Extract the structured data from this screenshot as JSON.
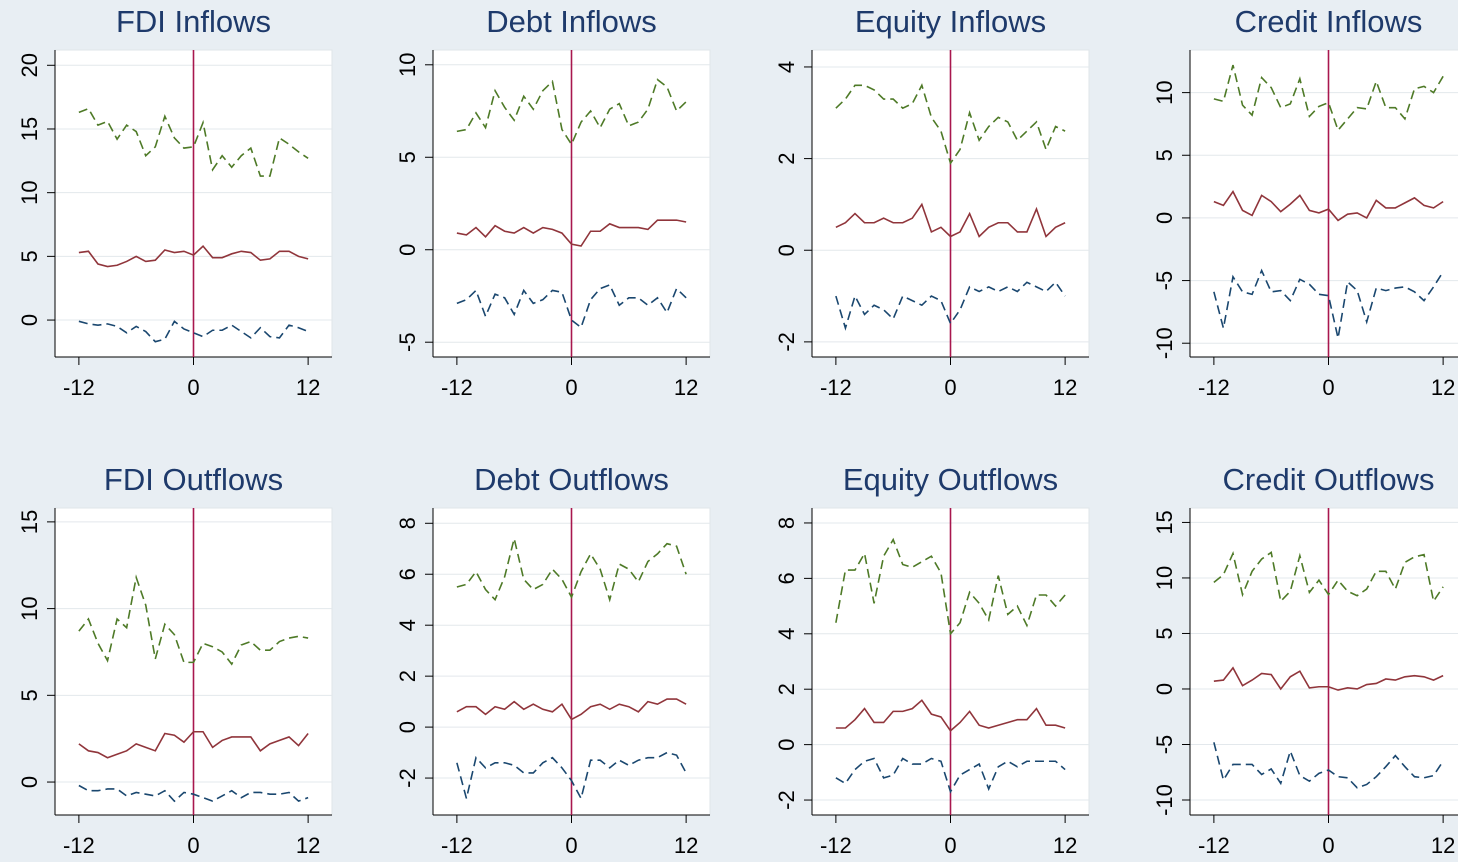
{
  "chart_data": [
    {
      "type": "line",
      "title": "FDI Inflows",
      "x": [
        -12,
        -11,
        -10,
        -9,
        -8,
        -7,
        -6,
        -5,
        -4,
        -3,
        -2,
        -1,
        0,
        1,
        2,
        3,
        4,
        5,
        6,
        7,
        8,
        9,
        10,
        11,
        12
      ],
      "xlim": [
        -14.5,
        14.5
      ],
      "xticks": [
        -12,
        0,
        12
      ],
      "ylim": [
        -2.9,
        21.2
      ],
      "yticks": [
        0,
        5,
        10,
        15,
        20
      ],
      "grid": true,
      "vline": 0,
      "vline_color": "#a8174e",
      "series": [
        {
          "color": "#4e7a27",
          "style": "dashed",
          "values": [
            16.3,
            16.6,
            15.3,
            15.6,
            14.2,
            15.3,
            14.8,
            12.9,
            13.6,
            16.0,
            14.3,
            13.5,
            13.6,
            15.5,
            11.8,
            12.9,
            12.0,
            12.9,
            13.5,
            11.3,
            11.3,
            14.3,
            13.8,
            13.2,
            12.7
          ]
        },
        {
          "color": "#90353b",
          "style": "solid",
          "values": [
            5.3,
            5.4,
            4.4,
            4.2,
            4.3,
            4.6,
            5.0,
            4.6,
            4.7,
            5.5,
            5.3,
            5.4,
            5.1,
            5.8,
            4.9,
            4.9,
            5.2,
            5.4,
            5.3,
            4.7,
            4.8,
            5.4,
            5.4,
            5.0,
            4.8
          ]
        },
        {
          "color": "#1a476f",
          "style": "dashed",
          "values": [
            -0.1,
            -0.3,
            -0.4,
            -0.3,
            -0.5,
            -1.0,
            -0.5,
            -0.9,
            -1.7,
            -1.5,
            -0.1,
            -0.7,
            -1.0,
            -1.3,
            -0.8,
            -0.8,
            -0.4,
            -0.9,
            -1.4,
            -0.6,
            -1.3,
            -1.4,
            -0.4,
            -0.6,
            -0.9
          ]
        }
      ]
    },
    {
      "type": "line",
      "title": "Debt Inflows",
      "x": [
        -12,
        -11,
        -10,
        -9,
        -8,
        -7,
        -6,
        -5,
        -4,
        -3,
        -2,
        -1,
        0,
        1,
        2,
        3,
        4,
        5,
        6,
        7,
        8,
        9,
        10,
        11,
        12
      ],
      "xlim": [
        -14.5,
        14.5
      ],
      "xticks": [
        -12,
        0,
        12
      ],
      "ylim": [
        -5.8,
        10.8
      ],
      "yticks": [
        -5,
        0,
        5,
        10
      ],
      "grid": true,
      "vline": 0,
      "vline_color": "#a8174e",
      "series": [
        {
          "color": "#4e7a27",
          "style": "dashed",
          "values": [
            6.4,
            6.5,
            7.4,
            6.6,
            8.6,
            7.7,
            7.0,
            8.3,
            7.6,
            8.6,
            9.1,
            6.5,
            5.7,
            6.9,
            7.5,
            6.6,
            7.6,
            7.9,
            6.7,
            6.9,
            7.6,
            9.2,
            8.8,
            7.5,
            8.0
          ]
        },
        {
          "color": "#90353b",
          "style": "solid",
          "values": [
            0.9,
            0.8,
            1.2,
            0.7,
            1.3,
            1.0,
            0.9,
            1.2,
            0.9,
            1.2,
            1.1,
            0.9,
            0.3,
            0.2,
            1.0,
            1.0,
            1.4,
            1.2,
            1.2,
            1.2,
            1.1,
            1.6,
            1.6,
            1.6,
            1.5
          ]
        },
        {
          "color": "#1a476f",
          "style": "dashed",
          "values": [
            -2.9,
            -2.7,
            -2.2,
            -3.6,
            -2.4,
            -2.6,
            -3.5,
            -2.2,
            -2.9,
            -2.7,
            -2.2,
            -2.3,
            -3.8,
            -4.2,
            -2.7,
            -2.1,
            -1.9,
            -3.0,
            -2.6,
            -2.6,
            -3.0,
            -2.6,
            -3.4,
            -2.1,
            -2.6
          ]
        }
      ]
    },
    {
      "type": "line",
      "title": "Equity Inflows",
      "x": [
        -12,
        -11,
        -10,
        -9,
        -8,
        -7,
        -6,
        -5,
        -4,
        -3,
        -2,
        -1,
        0,
        1,
        2,
        3,
        4,
        5,
        6,
        7,
        8,
        9,
        10,
        11,
        12
      ],
      "xlim": [
        -14.5,
        14.5
      ],
      "xticks": [
        -12,
        0,
        12
      ],
      "ylim": [
        -2.33,
        4.37
      ],
      "yticks": [
        -2,
        0,
        2,
        4
      ],
      "grid": true,
      "vline": 0,
      "vline_color": "#a8174e",
      "series": [
        {
          "color": "#4e7a27",
          "style": "dashed",
          "values": [
            3.1,
            3.3,
            3.6,
            3.6,
            3.5,
            3.3,
            3.3,
            3.1,
            3.2,
            3.6,
            2.9,
            2.6,
            1.9,
            2.2,
            3.0,
            2.4,
            2.7,
            2.9,
            2.8,
            2.4,
            2.6,
            2.8,
            2.2,
            2.7,
            2.6
          ]
        },
        {
          "color": "#90353b",
          "style": "solid",
          "values": [
            0.5,
            0.6,
            0.8,
            0.6,
            0.6,
            0.7,
            0.6,
            0.6,
            0.7,
            1.0,
            0.4,
            0.5,
            0.3,
            0.4,
            0.8,
            0.3,
            0.5,
            0.6,
            0.6,
            0.4,
            0.4,
            0.9,
            0.3,
            0.5,
            0.6
          ]
        },
        {
          "color": "#1a476f",
          "style": "dashed",
          "values": [
            -1.0,
            -1.7,
            -1.0,
            -1.4,
            -1.2,
            -1.3,
            -1.5,
            -1.0,
            -1.1,
            -1.2,
            -1.0,
            -1.1,
            -1.6,
            -1.3,
            -0.8,
            -0.9,
            -0.8,
            -0.9,
            -0.8,
            -0.9,
            -0.7,
            -0.8,
            -0.9,
            -0.7,
            -1.0
          ]
        }
      ]
    },
    {
      "type": "line",
      "title": "Credit Inflows",
      "x": [
        -12,
        -11,
        -10,
        -9,
        -8,
        -7,
        -6,
        -5,
        -4,
        -3,
        -2,
        -1,
        0,
        1,
        2,
        3,
        4,
        5,
        6,
        7,
        8,
        9,
        10,
        11,
        12
      ],
      "xlim": [
        -14.5,
        14.5
      ],
      "xticks": [
        -12,
        0,
        12
      ],
      "ylim": [
        -11.1,
        13.4
      ],
      "yticks": [
        -10,
        -5,
        0,
        5,
        10
      ],
      "grid": true,
      "vline": 0,
      "vline_color": "#a8174e",
      "series": [
        {
          "color": "#4e7a27",
          "style": "dashed",
          "values": [
            9.5,
            9.3,
            12.2,
            9.0,
            8.2,
            11.2,
            10.4,
            8.8,
            9.1,
            11.1,
            8.1,
            8.9,
            9.2,
            7.0,
            7.9,
            8.8,
            8.7,
            10.9,
            8.8,
            8.8,
            7.9,
            10.3,
            10.5,
            10.0,
            11.3
          ]
        },
        {
          "color": "#90353b",
          "style": "solid",
          "values": [
            1.3,
            1.0,
            2.1,
            0.6,
            0.2,
            1.8,
            1.3,
            0.5,
            1.1,
            1.8,
            0.6,
            0.4,
            0.7,
            -0.2,
            0.3,
            0.4,
            0.0,
            1.4,
            0.8,
            0.8,
            1.2,
            1.6,
            1.0,
            0.8,
            1.3
          ]
        },
        {
          "color": "#1a476f",
          "style": "dashed",
          "values": [
            -5.9,
            -8.8,
            -4.7,
            -5.9,
            -6.1,
            -4.2,
            -5.9,
            -5.8,
            -6.6,
            -4.9,
            -5.3,
            -6.1,
            -6.2,
            -9.6,
            -5.1,
            -5.8,
            -8.3,
            -5.6,
            -5.8,
            -5.6,
            -5.5,
            -5.9,
            -6.6,
            -5.5,
            -4.3
          ]
        }
      ]
    },
    {
      "type": "line",
      "title": "FDI Outflows",
      "x": [
        -12,
        -11,
        -10,
        -9,
        -8,
        -7,
        -6,
        -5,
        -4,
        -3,
        -2,
        -1,
        0,
        1,
        2,
        3,
        4,
        5,
        6,
        7,
        8,
        9,
        10,
        11,
        12
      ],
      "xlim": [
        -14.5,
        14.5
      ],
      "xticks": [
        -12,
        0,
        12
      ],
      "ylim": [
        -1.9,
        15.8
      ],
      "yticks": [
        0,
        5,
        10,
        15
      ],
      "grid": true,
      "vline": 0,
      "vline_color": "#a8174e",
      "series": [
        {
          "color": "#4e7a27",
          "style": "dashed",
          "values": [
            8.7,
            9.4,
            8.0,
            7.0,
            9.4,
            8.9,
            11.8,
            10.2,
            7.1,
            9.1,
            8.5,
            6.9,
            6.9,
            8.0,
            7.8,
            7.5,
            6.8,
            7.9,
            8.1,
            7.6,
            7.6,
            8.1,
            8.3,
            8.4,
            8.3
          ]
        },
        {
          "color": "#90353b",
          "style": "solid",
          "values": [
            2.2,
            1.8,
            1.7,
            1.4,
            1.6,
            1.8,
            2.2,
            2.0,
            1.8,
            2.8,
            2.7,
            2.3,
            2.9,
            2.9,
            2.0,
            2.4,
            2.6,
            2.6,
            2.6,
            1.8,
            2.2,
            2.4,
            2.6,
            2.1,
            2.8
          ]
        },
        {
          "color": "#1a476f",
          "style": "dashed",
          "values": [
            -0.2,
            -0.5,
            -0.5,
            -0.4,
            -0.4,
            -0.8,
            -0.6,
            -0.7,
            -0.8,
            -0.5,
            -1.1,
            -0.6,
            -0.7,
            -0.9,
            -1.1,
            -0.8,
            -0.5,
            -0.9,
            -0.6,
            -0.6,
            -0.7,
            -0.7,
            -0.6,
            -1.1,
            -0.9
          ]
        }
      ]
    },
    {
      "type": "line",
      "title": "Debt Outflows",
      "x": [
        -12,
        -11,
        -10,
        -9,
        -8,
        -7,
        -6,
        -5,
        -4,
        -3,
        -2,
        -1,
        0,
        1,
        2,
        3,
        4,
        5,
        6,
        7,
        8,
        9,
        10,
        11,
        12
      ],
      "xlim": [
        -14.5,
        14.5
      ],
      "xticks": [
        -12,
        0,
        12
      ],
      "ylim": [
        -3.45,
        8.6
      ],
      "yticks": [
        -2,
        0,
        2,
        4,
        6,
        8
      ],
      "grid": true,
      "vline": 0,
      "vline_color": "#a8174e",
      "series": [
        {
          "color": "#4e7a27",
          "style": "dashed",
          "values": [
            5.5,
            5.6,
            6.1,
            5.4,
            5.0,
            5.9,
            7.4,
            5.8,
            5.4,
            5.6,
            6.2,
            5.8,
            5.1,
            6.1,
            6.8,
            6.2,
            5.0,
            6.4,
            6.2,
            5.7,
            6.5,
            6.8,
            7.2,
            7.1,
            6.0
          ]
        },
        {
          "color": "#90353b",
          "style": "solid",
          "values": [
            0.6,
            0.8,
            0.8,
            0.5,
            0.8,
            0.7,
            1.0,
            0.7,
            0.9,
            0.7,
            0.6,
            0.9,
            0.3,
            0.5,
            0.8,
            0.9,
            0.7,
            0.9,
            0.8,
            0.6,
            1.0,
            0.9,
            1.1,
            1.1,
            0.9
          ]
        },
        {
          "color": "#1a476f",
          "style": "dashed",
          "values": [
            -1.4,
            -2.8,
            -1.2,
            -1.6,
            -1.4,
            -1.4,
            -1.5,
            -1.8,
            -1.8,
            -1.4,
            -1.2,
            -1.6,
            -2.1,
            -2.8,
            -1.3,
            -1.3,
            -1.6,
            -1.3,
            -1.5,
            -1.3,
            -1.2,
            -1.2,
            -1.0,
            -1.1,
            -1.8
          ]
        }
      ]
    },
    {
      "type": "line",
      "title": "Equity Outflows",
      "x": [
        -12,
        -11,
        -10,
        -9,
        -8,
        -7,
        -6,
        -5,
        -4,
        -3,
        -2,
        -1,
        0,
        1,
        2,
        3,
        4,
        5,
        6,
        7,
        8,
        9,
        10,
        11,
        12
      ],
      "xlim": [
        -14.5,
        14.5
      ],
      "xticks": [
        -12,
        0,
        12
      ],
      "ylim": [
        -2.54,
        8.54
      ],
      "yticks": [
        -2,
        0,
        2,
        4,
        6,
        8
      ],
      "grid": true,
      "vline": 0,
      "vline_color": "#a8174e",
      "series": [
        {
          "color": "#4e7a27",
          "style": "dashed",
          "values": [
            4.4,
            6.3,
            6.3,
            6.9,
            5.1,
            6.8,
            7.4,
            6.5,
            6.4,
            6.6,
            6.8,
            6.2,
            4.0,
            4.4,
            5.5,
            5.1,
            4.5,
            6.1,
            4.7,
            5.0,
            4.3,
            5.4,
            5.4,
            5.0,
            5.4
          ]
        },
        {
          "color": "#90353b",
          "style": "solid",
          "values": [
            0.6,
            0.6,
            0.9,
            1.3,
            0.8,
            0.8,
            1.2,
            1.2,
            1.3,
            1.6,
            1.1,
            1.0,
            0.5,
            0.8,
            1.2,
            0.7,
            0.6,
            0.7,
            0.8,
            0.9,
            0.9,
            1.3,
            0.7,
            0.7,
            0.6
          ]
        },
        {
          "color": "#1a476f",
          "style": "dashed",
          "values": [
            -1.2,
            -1.4,
            -0.9,
            -0.6,
            -0.5,
            -1.2,
            -1.1,
            -0.5,
            -0.7,
            -0.7,
            -0.5,
            -0.6,
            -1.7,
            -1.1,
            -0.9,
            -0.7,
            -1.6,
            -0.8,
            -0.6,
            -0.8,
            -0.6,
            -0.6,
            -0.6,
            -0.6,
            -0.9
          ]
        }
      ]
    },
    {
      "type": "line",
      "title": "Credit Outflows",
      "x": [
        -12,
        -11,
        -10,
        -9,
        -8,
        -7,
        -6,
        -5,
        -4,
        -3,
        -2,
        -1,
        0,
        1,
        2,
        3,
        4,
        5,
        6,
        7,
        8,
        9,
        10,
        11,
        12
      ],
      "xlim": [
        -14.5,
        14.5
      ],
      "xticks": [
        -12,
        0,
        12
      ],
      "ylim": [
        -11.35,
        16.3
      ],
      "yticks": [
        -10,
        -5,
        0,
        5,
        10,
        15
      ],
      "grid": true,
      "vline": 0,
      "vline_color": "#a8174e",
      "series": [
        {
          "color": "#4e7a27",
          "style": "dashed",
          "values": [
            9.6,
            10.3,
            12.2,
            8.5,
            10.6,
            11.7,
            12.3,
            7.9,
            8.8,
            12.0,
            8.7,
            9.8,
            8.5,
            9.8,
            8.8,
            8.4,
            9.0,
            10.6,
            10.6,
            9.0,
            11.4,
            11.9,
            12.1,
            7.9,
            9.2
          ]
        },
        {
          "color": "#90353b",
          "style": "solid",
          "values": [
            0.7,
            0.8,
            1.9,
            0.3,
            0.8,
            1.4,
            1.3,
            0.0,
            1.1,
            1.6,
            0.1,
            0.2,
            0.2,
            -0.1,
            0.1,
            0.0,
            0.4,
            0.5,
            0.9,
            0.8,
            1.1,
            1.2,
            1.1,
            0.8,
            1.2
          ]
        },
        {
          "color": "#1a476f",
          "style": "dashed",
          "values": [
            -4.8,
            -8.2,
            -6.8,
            -6.8,
            -6.8,
            -7.7,
            -7.2,
            -8.5,
            -5.6,
            -7.8,
            -8.3,
            -7.6,
            -7.3,
            -7.9,
            -8.0,
            -8.9,
            -8.6,
            -7.9,
            -7.0,
            -6.0,
            -7.0,
            -7.9,
            -8.0,
            -7.8,
            -6.5
          ]
        }
      ]
    }
  ]
}
